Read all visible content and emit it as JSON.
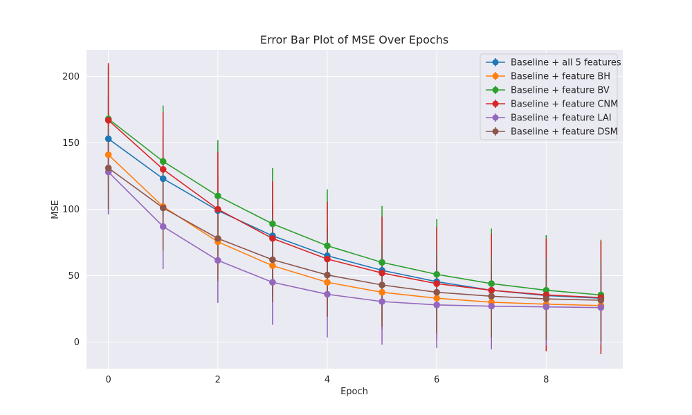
{
  "chart_data": {
    "type": "line",
    "title": "Error Bar Plot of MSE Over Epochs",
    "xlabel": "Epoch",
    "ylabel": "MSE",
    "x": [
      0,
      1,
      2,
      3,
      4,
      5,
      6,
      7,
      8,
      9
    ],
    "xlim": [
      -0.4,
      9.4
    ],
    "ylim": [
      -20,
      220
    ],
    "xticks": [
      0,
      2,
      4,
      6,
      8
    ],
    "yticks": [
      0,
      50,
      100,
      150,
      200
    ],
    "grid": true,
    "legend_position": "top-right",
    "error_bars": true,
    "series": [
      {
        "name": "Baseline + all 5 features",
        "color": "#1f77b4",
        "values": [
          153,
          123,
          99,
          80,
          65,
          54,
          45.5,
          39,
          35,
          33
        ],
        "errors": [
          33,
          33,
          29,
          25,
          22,
          20,
          18,
          17,
          16,
          16
        ]
      },
      {
        "name": "Baseline + feature BH",
        "color": "#ff7f0e",
        "values": [
          141,
          102,
          75.5,
          57.5,
          45,
          37.5,
          33,
          30,
          28.5,
          27.5
        ],
        "errors": [
          30,
          27,
          24,
          20,
          18,
          16,
          15,
          14,
          13,
          13
        ]
      },
      {
        "name": "Baseline + feature BV",
        "color": "#2ca02c",
        "values": [
          168,
          136,
          110,
          89,
          72.5,
          60,
          51,
          44,
          39,
          35.5
        ],
        "errors": [
          40,
          42,
          42,
          42,
          42.5,
          42.5,
          41.5,
          41.5,
          41.5,
          41.5
        ]
      },
      {
        "name": "Baseline + feature CNM",
        "color": "#d62728",
        "values": [
          167,
          130,
          100,
          78,
          62.5,
          52,
          44,
          39,
          35.5,
          33.5
        ],
        "errors": [
          43,
          43,
          43,
          43,
          43,
          42.5,
          42.5,
          42.5,
          42.5,
          42.5
        ]
      },
      {
        "name": "Baseline + feature LAI",
        "color": "#9467bd",
        "values": [
          128,
          87,
          61.5,
          45,
          36,
          30.5,
          28,
          27,
          26.5,
          26
        ],
        "errors": [
          32,
          32,
          32,
          32,
          32.5,
          32.5,
          32.5,
          32.5,
          29,
          28
        ]
      },
      {
        "name": "Baseline + feature DSM",
        "color": "#8c564b",
        "values": [
          131,
          101,
          78,
          62,
          50.5,
          43,
          37.5,
          34.5,
          32.5,
          31.5
        ],
        "errors": [
          31,
          32,
          32,
          32,
          31.5,
          31.5,
          31,
          31,
          31,
          31
        ]
      }
    ]
  }
}
